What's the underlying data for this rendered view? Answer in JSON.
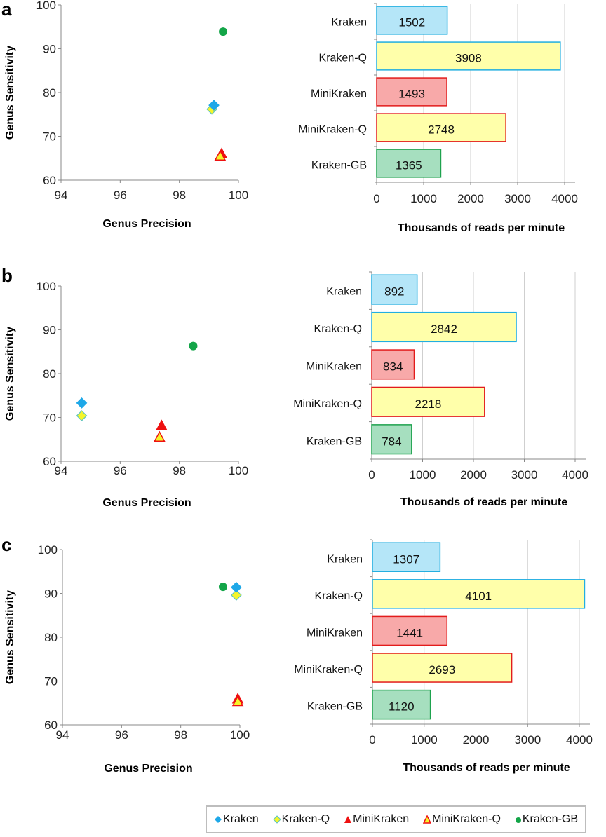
{
  "colors": {
    "Kraken": {
      "fill": "#b5e6f8",
      "stroke": "#22aee0",
      "marker": "#1ea8e8",
      "marker_stroke": "#1ea8e8"
    },
    "Kraken-Q": {
      "fill": "#ffffaa",
      "stroke": "#22aee0",
      "marker": "#f5f52a",
      "marker_stroke": "#5cc3c0"
    },
    "MiniKraken": {
      "fill": "#f8a9a9",
      "stroke": "#e21c1c",
      "marker": "#ee1111",
      "marker_stroke": "#ee1111"
    },
    "MiniKraken-Q": {
      "fill": "#ffffaa",
      "stroke": "#e21c1c",
      "marker": "#f5f52a",
      "marker_stroke": "#ee1111"
    },
    "Kraken-GB": {
      "fill": "#a6dfbf",
      "stroke": "#1ea24e",
      "marker": "#13a548",
      "marker_stroke": "#13a548"
    }
  },
  "legend": [
    {
      "label": "Kraken",
      "shape": "diamond"
    },
    {
      "label": "Kraken-Q",
      "shape": "diamond"
    },
    {
      "label": "MiniKraken",
      "shape": "triangle"
    },
    {
      "label": "MiniKraken-Q",
      "shape": "triangle"
    },
    {
      "label": "Kraken-GB",
      "shape": "circle"
    }
  ],
  "chart_data": [
    {
      "panel": "a",
      "type": "scatter",
      "xlabel": "Genus Precision",
      "ylabel": "Genus Sensitivity",
      "xlim": [
        94,
        100
      ],
      "ylim": [
        60,
        100
      ],
      "xticks": [
        "94",
        "96",
        "98",
        "100"
      ],
      "yticks": [
        "60",
        "70",
        "80",
        "90",
        "100"
      ],
      "series": [
        {
          "name": "Kraken",
          "x": 99.17,
          "y": 77.1
        },
        {
          "name": "Kraken-Q",
          "x": 99.1,
          "y": 76.2
        },
        {
          "name": "MiniKraken",
          "x": 99.43,
          "y": 65.9
        },
        {
          "name": "MiniKraken-Q",
          "x": 99.38,
          "y": 65.4
        },
        {
          "name": "Kraken-GB",
          "x": 99.48,
          "y": 93.9
        }
      ]
    },
    {
      "panel": "a",
      "type": "bar",
      "orientation": "horizontal",
      "xlabel": "Thousands  of reads per minute",
      "xlim": [
        0,
        4000
      ],
      "xticks": [
        "0",
        "1000",
        "2000",
        "3000",
        "4000"
      ],
      "grid": true,
      "categories": [
        "Kraken",
        "Kraken-Q",
        "MiniKraken",
        "MiniKraken-Q",
        "Kraken-GB"
      ],
      "values": [
        1502,
        3908,
        1493,
        2748,
        1365
      ],
      "data_labels": [
        "1502",
        "3908",
        "1493",
        "2748",
        "1365"
      ]
    },
    {
      "panel": "b",
      "type": "scatter",
      "xlabel": "Genus Precision",
      "ylabel": "Genus Sensitivity",
      "xlim": [
        94,
        100
      ],
      "ylim": [
        60,
        100
      ],
      "xticks": [
        "94",
        "96",
        "98",
        "100"
      ],
      "yticks": [
        "60",
        "70",
        "80",
        "90",
        "100"
      ],
      "series": [
        {
          "name": "Kraken",
          "x": 94.7,
          "y": 73.3
        },
        {
          "name": "Kraken-Q",
          "x": 94.7,
          "y": 70.4
        },
        {
          "name": "MiniKraken",
          "x": 97.4,
          "y": 68.0
        },
        {
          "name": "MiniKraken-Q",
          "x": 97.33,
          "y": 65.4
        },
        {
          "name": "Kraken-GB",
          "x": 98.47,
          "y": 86.3
        }
      ]
    },
    {
      "panel": "b",
      "type": "bar",
      "orientation": "horizontal",
      "xlabel": "Thousands  of reads per minute",
      "xlim": [
        0,
        4000
      ],
      "xticks": [
        "0",
        "1000",
        "2000",
        "3000",
        "4000"
      ],
      "grid": true,
      "categories": [
        "Kraken",
        "Kraken-Q",
        "MiniKraken",
        "MiniKraken-Q",
        "Kraken-GB"
      ],
      "values": [
        892,
        2842,
        834,
        2218,
        784
      ],
      "data_labels": [
        "892",
        "2842",
        "834",
        "2218",
        "784"
      ]
    },
    {
      "panel": "c",
      "type": "scatter",
      "xlabel": "Genus Precision",
      "ylabel": "Genus Sensitivity",
      "xlim": [
        94,
        100
      ],
      "ylim": [
        60,
        100
      ],
      "xticks": [
        "94",
        "96",
        "98",
        "100"
      ],
      "yticks": [
        "60",
        "70",
        "80",
        "90",
        "100"
      ],
      "series": [
        {
          "name": "Kraken",
          "x": 99.88,
          "y": 91.4
        },
        {
          "name": "Kraken-Q",
          "x": 99.88,
          "y": 89.6
        },
        {
          "name": "MiniKraken",
          "x": 99.93,
          "y": 65.8
        },
        {
          "name": "MiniKraken-Q",
          "x": 99.93,
          "y": 65.2
        },
        {
          "name": "Kraken-GB",
          "x": 99.43,
          "y": 91.5
        }
      ]
    },
    {
      "panel": "c",
      "type": "bar",
      "orientation": "horizontal",
      "xlabel": "Thousands  of reads per minute",
      "xlim": [
        0,
        4000
      ],
      "xticks": [
        "0",
        "1000",
        "2000",
        "3000",
        "4000"
      ],
      "grid": true,
      "categories": [
        "Kraken",
        "Kraken-Q",
        "MiniKraken",
        "MiniKraken-Q",
        "Kraken-GB"
      ],
      "values": [
        1307,
        4101,
        1441,
        2693,
        1120
      ],
      "data_labels": [
        "1307",
        "4101",
        "1441",
        "2693",
        "1120"
      ]
    }
  ]
}
